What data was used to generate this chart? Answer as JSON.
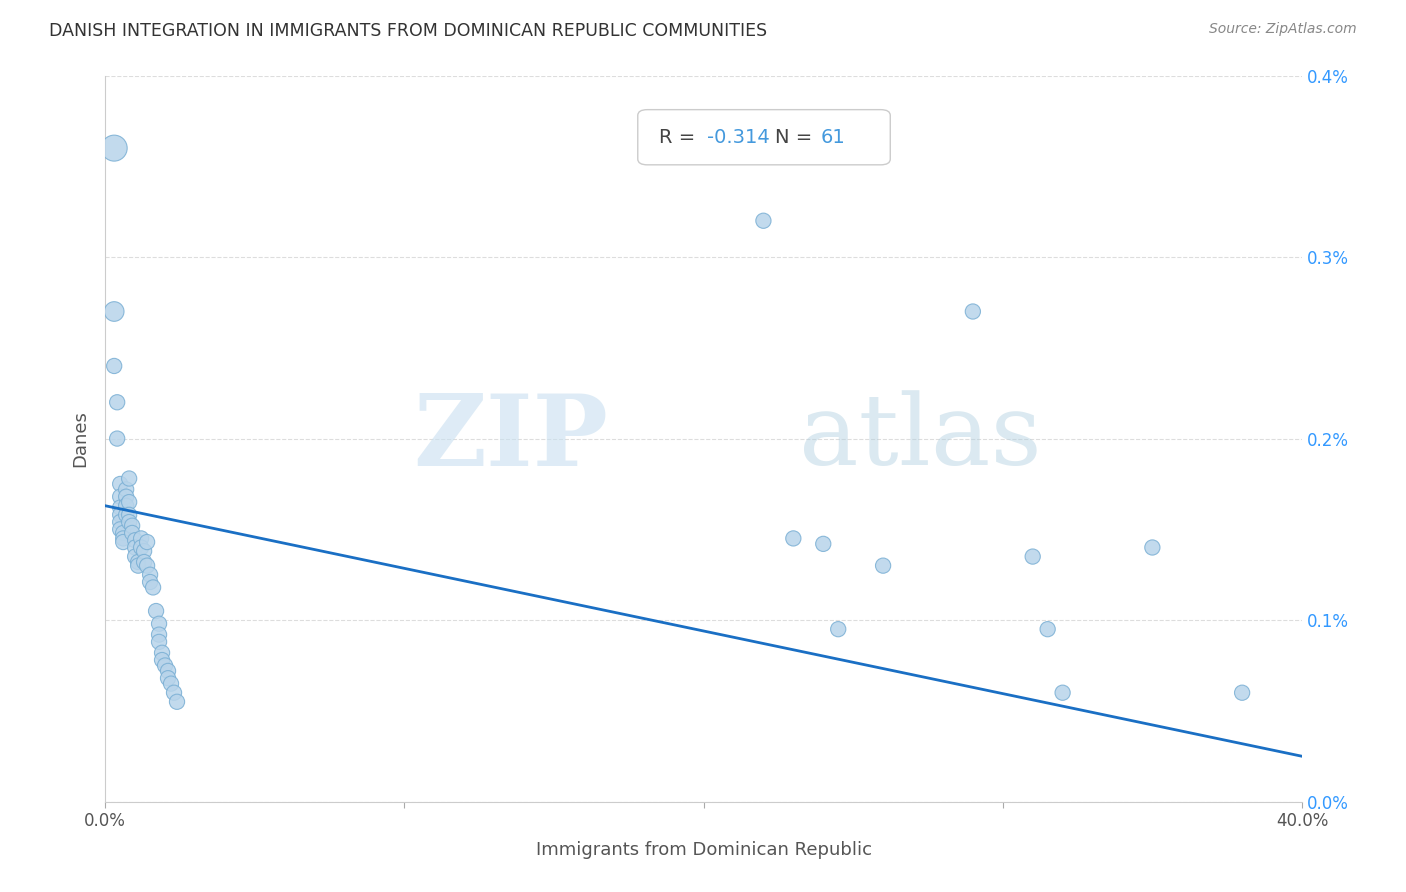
{
  "title": "DANISH INTEGRATION IN IMMIGRANTS FROM DOMINICAN REPUBLIC COMMUNITIES",
  "source": "Source: ZipAtlas.com",
  "xlabel": "Immigrants from Dominican Republic",
  "ylabel": "Danes",
  "R": -0.314,
  "N": 61,
  "xlim": [
    0,
    0.4
  ],
  "ylim": [
    0,
    0.004
  ],
  "scatter_color": "#b8d4ea",
  "scatter_edgecolor": "#7aafd4",
  "line_color": "#1a6fc4",
  "background_color": "#ffffff",
  "points": [
    [
      0.003,
      0.0036
    ],
    [
      0.003,
      0.0027
    ],
    [
      0.003,
      0.0024
    ],
    [
      0.004,
      0.0022
    ],
    [
      0.004,
      0.002
    ],
    [
      0.005,
      0.00175
    ],
    [
      0.005,
      0.00168
    ],
    [
      0.005,
      0.00162
    ],
    [
      0.005,
      0.00158
    ],
    [
      0.005,
      0.00154
    ],
    [
      0.005,
      0.0015
    ],
    [
      0.006,
      0.00148
    ],
    [
      0.006,
      0.00145
    ],
    [
      0.006,
      0.00143
    ],
    [
      0.007,
      0.00172
    ],
    [
      0.007,
      0.00168
    ],
    [
      0.007,
      0.00163
    ],
    [
      0.007,
      0.00158
    ],
    [
      0.008,
      0.00178
    ],
    [
      0.008,
      0.00165
    ],
    [
      0.008,
      0.00158
    ],
    [
      0.008,
      0.00154
    ],
    [
      0.009,
      0.00152
    ],
    [
      0.009,
      0.00148
    ],
    [
      0.01,
      0.00144
    ],
    [
      0.01,
      0.0014
    ],
    [
      0.01,
      0.00135
    ],
    [
      0.011,
      0.00132
    ],
    [
      0.011,
      0.0013
    ],
    [
      0.012,
      0.00145
    ],
    [
      0.012,
      0.0014
    ],
    [
      0.013,
      0.00138
    ],
    [
      0.013,
      0.00132
    ],
    [
      0.014,
      0.00143
    ],
    [
      0.014,
      0.0013
    ],
    [
      0.015,
      0.00125
    ],
    [
      0.015,
      0.00121
    ],
    [
      0.016,
      0.00118
    ],
    [
      0.017,
      0.00105
    ],
    [
      0.018,
      0.00098
    ],
    [
      0.018,
      0.00092
    ],
    [
      0.018,
      0.00088
    ],
    [
      0.019,
      0.00082
    ],
    [
      0.019,
      0.00078
    ],
    [
      0.02,
      0.00075
    ],
    [
      0.021,
      0.00072
    ],
    [
      0.021,
      0.00068
    ],
    [
      0.022,
      0.00065
    ],
    [
      0.023,
      0.0006
    ],
    [
      0.024,
      0.00055
    ],
    [
      0.22,
      0.0032
    ],
    [
      0.23,
      0.00145
    ],
    [
      0.24,
      0.00142
    ],
    [
      0.245,
      0.00095
    ],
    [
      0.26,
      0.0013
    ],
    [
      0.29,
      0.0027
    ],
    [
      0.31,
      0.00135
    ],
    [
      0.315,
      0.00095
    ],
    [
      0.32,
      0.0006
    ],
    [
      0.35,
      0.0014
    ],
    [
      0.38,
      0.0006
    ]
  ],
  "reg_line_x": [
    0.0,
    0.4
  ],
  "reg_line_y": [
    0.00163,
    0.00025
  ]
}
